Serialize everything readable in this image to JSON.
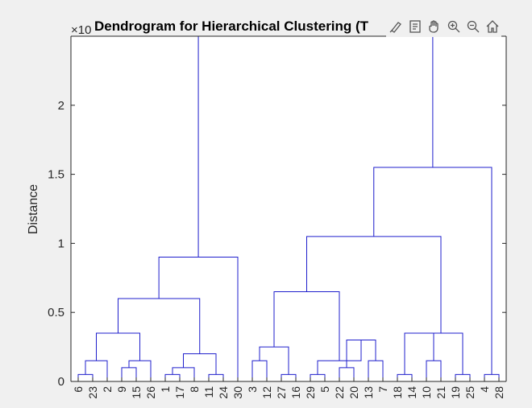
{
  "chart_data": {
    "type": "dendrogram",
    "title": "Dendrogram for Hierarchical Clustering (T",
    "ylabel": "Distance",
    "xlabel": "",
    "exponent_label": "×10",
    "ylim": [
      0,
      2.5
    ],
    "yticks": [
      0,
      0.5,
      1,
      1.5,
      2
    ],
    "ytick_labels": [
      "0",
      "0.5",
      "1",
      "1.5",
      "2"
    ],
    "leaf_order": [
      "6",
      "23",
      "2",
      "9",
      "15",
      "26",
      "1",
      "17",
      "8",
      "11",
      "24",
      "30",
      "3",
      "12",
      "27",
      "16",
      "29",
      "5",
      "22",
      "20",
      "13",
      "7",
      "18",
      "14",
      "10",
      "21",
      "19",
      "25",
      "4",
      "28"
    ],
    "merges": [
      {
        "children": [
          "6",
          "23"
        ],
        "height": 0.05
      },
      {
        "children": [
          "9",
          "15"
        ],
        "height": 0.1
      },
      {
        "children": [
          "1",
          "17"
        ],
        "height": 0.05
      },
      {
        "children": [
          "1+17",
          "8"
        ],
        "height": 0.1
      },
      {
        "children": [
          "11",
          "24"
        ],
        "height": 0.05
      },
      {
        "children": [
          "3",
          "12"
        ],
        "height": 0.15
      },
      {
        "children": [
          "27",
          "16"
        ],
        "height": 0.05
      },
      {
        "children": [
          "29",
          "5"
        ],
        "height": 0.05
      },
      {
        "children": [
          "22",
          "20"
        ],
        "height": 0.1
      },
      {
        "children": [
          "13",
          "7"
        ],
        "height": 0.15
      },
      {
        "children": [
          "18",
          "14"
        ],
        "height": 0.05
      },
      {
        "children": [
          "10",
          "21"
        ],
        "height": 0.15
      },
      {
        "children": [
          "19",
          "25"
        ],
        "height": 0.05
      },
      {
        "children": [
          "4",
          "28"
        ],
        "height": 0.05
      },
      {
        "children": [
          "6+23",
          "2"
        ],
        "height": 0.15
      },
      {
        "children": [
          "9+15",
          "26"
        ],
        "height": 0.15
      },
      {
        "children": [
          "6+23+2",
          "9+15+26"
        ],
        "height": 0.35
      },
      {
        "children": [
          "1+17+8",
          "11+24"
        ],
        "height": 0.2
      },
      {
        "children": [
          "6..26",
          "1..24"
        ],
        "height": 0.6
      },
      {
        "children": [
          "6..24",
          "30"
        ],
        "height": 0.9
      },
      {
        "children": [
          "3+12",
          "27+16"
        ],
        "height": 0.25
      },
      {
        "children": [
          "22+20",
          "13+7"
        ],
        "height": 0.3
      },
      {
        "children": [
          "29+5",
          "22..7"
        ],
        "height": 0.15
      },
      {
        "children": [
          "3..16",
          "29..7"
        ],
        "height": 0.65
      },
      {
        "children": [
          "18+14",
          "10+21"
        ],
        "height": 0.35
      },
      {
        "children": [
          "19+25",
          "18..21"
        ],
        "height": 0.35
      },
      {
        "children": [
          "3..7",
          "18..25"
        ],
        "height": 1.05
      },
      {
        "children": [
          "3..25",
          "4+28"
        ],
        "height": 1.55
      },
      {
        "children": [
          "6..30",
          "3..28"
        ],
        "height": 2.5
      }
    ],
    "line_color": "#1f1fcc",
    "grid": false
  },
  "toolbar": {
    "icons": [
      "brush-icon",
      "data-tips-icon",
      "pan-icon",
      "zoom-in-icon",
      "zoom-out-icon",
      "home-icon"
    ]
  }
}
